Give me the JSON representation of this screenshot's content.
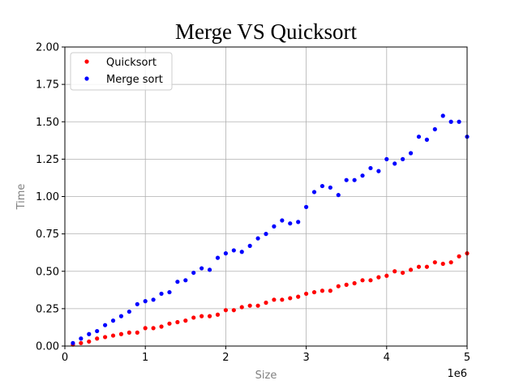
{
  "chart_data": {
    "type": "scatter",
    "title": "Merge VS Quicksort",
    "xlabel": "Size",
    "ylabel": "Time",
    "x_offset_label": "1e6",
    "xlim": [
      0,
      5
    ],
    "ylim": [
      0,
      2
    ],
    "x_ticks": [
      0,
      1,
      2,
      3,
      4,
      5
    ],
    "x_tick_labels": [
      "0",
      "1",
      "2",
      "3",
      "4",
      "5"
    ],
    "y_ticks": [
      0,
      0.25,
      0.5,
      0.75,
      1.0,
      1.25,
      1.5,
      1.75,
      2.0
    ],
    "y_tick_labels": [
      "0.00",
      "0.25",
      "0.50",
      "0.75",
      "1.00",
      "1.25",
      "1.50",
      "1.75",
      "2.00"
    ],
    "grid": true,
    "legend_position": "top-left",
    "x": [
      0.1,
      0.2,
      0.3,
      0.4,
      0.5,
      0.6,
      0.7,
      0.8,
      0.9,
      1.0,
      1.1,
      1.2,
      1.3,
      1.4,
      1.5,
      1.6,
      1.7,
      1.8,
      1.9,
      2.0,
      2.1,
      2.2,
      2.3,
      2.4,
      2.5,
      2.6,
      2.7,
      2.8,
      2.9,
      3.0,
      3.1,
      3.2,
      3.3,
      3.4,
      3.5,
      3.6,
      3.7,
      3.8,
      3.9,
      4.0,
      4.1,
      4.2,
      4.3,
      4.4,
      4.5,
      4.6,
      4.7,
      4.8,
      4.9,
      5.0
    ],
    "series": [
      {
        "name": "Quicksort",
        "color": "#ff0000",
        "values": [
          0.01,
          0.02,
          0.03,
          0.05,
          0.06,
          0.07,
          0.08,
          0.09,
          0.09,
          0.12,
          0.12,
          0.13,
          0.15,
          0.16,
          0.17,
          0.19,
          0.2,
          0.2,
          0.21,
          0.24,
          0.24,
          0.26,
          0.27,
          0.27,
          0.29,
          0.31,
          0.31,
          0.32,
          0.33,
          0.35,
          0.36,
          0.37,
          0.37,
          0.4,
          0.41,
          0.42,
          0.44,
          0.44,
          0.46,
          0.47,
          0.5,
          0.49,
          0.51,
          0.53,
          0.53,
          0.56,
          0.55,
          0.56,
          0.6,
          0.62
        ]
      },
      {
        "name": "Merge sort",
        "color": "#0000ff",
        "values": [
          0.02,
          0.05,
          0.08,
          0.1,
          0.14,
          0.17,
          0.2,
          0.23,
          0.28,
          0.3,
          0.31,
          0.35,
          0.36,
          0.43,
          0.44,
          0.49,
          0.52,
          0.51,
          0.59,
          0.62,
          0.64,
          0.63,
          0.67,
          0.72,
          0.75,
          0.8,
          0.84,
          0.82,
          0.83,
          0.93,
          1.03,
          1.07,
          1.06,
          1.01,
          1.11,
          1.11,
          1.14,
          1.19,
          1.17,
          1.25,
          1.22,
          1.25,
          1.29,
          1.4,
          1.38,
          1.45,
          1.54,
          1.5,
          1.5,
          1.4
        ]
      }
    ]
  }
}
